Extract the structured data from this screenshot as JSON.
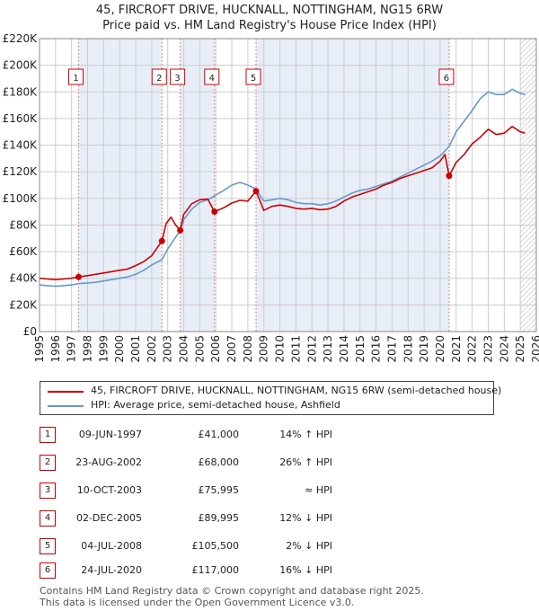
{
  "title_line1": "45, FIRCROFT DRIVE, HUCKNALL, NOTTINGHAM, NG15 6RW",
  "title_line2": "Price paid vs. HM Land Registry's House Price Index (HPI)",
  "legend": {
    "red_label": "45, FIRCROFT DRIVE, HUCKNALL, NOTTINGHAM, NG15 6RW (semi-detached house)",
    "blue_label": "HPI: Average price, semi-detached house, Ashfield"
  },
  "sales": [
    {
      "num": "1",
      "date": "09-JUN-1997",
      "price": "£41,000",
      "hpi": "14% ↑ HPI"
    },
    {
      "num": "2",
      "date": "23-AUG-2002",
      "price": "£68,000",
      "hpi": "26% ↑ HPI"
    },
    {
      "num": "3",
      "date": "10-OCT-2003",
      "price": "£75,995",
      "hpi": "≈ HPI"
    },
    {
      "num": "4",
      "date": "02-DEC-2005",
      "price": "£89,995",
      "hpi": "12% ↓ HPI"
    },
    {
      "num": "5",
      "date": "04-JUL-2008",
      "price": "£105,500",
      "hpi": "2% ↓ HPI"
    },
    {
      "num": "6",
      "date": "24-JUL-2020",
      "price": "£117,000",
      "hpi": "16% ↓ HPI"
    }
  ],
  "footer_line1": "Contains HM Land Registry data © Crown copyright and database right 2025.",
  "footer_line2": "This data is licensed under the Open Government Licence v3.0.",
  "chart_data": {
    "type": "line",
    "xlim": [
      1995,
      2026
    ],
    "ylim": [
      0,
      220000
    ],
    "x_ticks": [
      1995,
      1996,
      1997,
      1998,
      1999,
      2000,
      2001,
      2002,
      2003,
      2004,
      2005,
      2006,
      2007,
      2008,
      2009,
      2010,
      2011,
      2012,
      2013,
      2014,
      2015,
      2016,
      2017,
      2018,
      2019,
      2020,
      2021,
      2022,
      2023,
      2024,
      2025,
      2026
    ],
    "y_ticks": [
      {
        "value": 0,
        "label": "£0"
      },
      {
        "value": 20000,
        "label": "£20K"
      },
      {
        "value": 40000,
        "label": "£40K"
      },
      {
        "value": 60000,
        "label": "£60K"
      },
      {
        "value": 80000,
        "label": "£80K"
      },
      {
        "value": 100000,
        "label": "£100K"
      },
      {
        "value": 120000,
        "label": "£120K"
      },
      {
        "value": 140000,
        "label": "£140K"
      },
      {
        "value": 160000,
        "label": "£160K"
      },
      {
        "value": 180000,
        "label": "£180K"
      },
      {
        "value": 200000,
        "label": "£200K"
      },
      {
        "value": 220000,
        "label": "£220K"
      }
    ],
    "colors": {
      "red": "#cc0000",
      "blue": "#6699cc",
      "shade": "#e8eef8",
      "grid": "#cccccc",
      "marker_dash": "#e06666"
    },
    "shaded_periods": [
      [
        1997.44,
        2002.64
      ],
      [
        2003.78,
        2005.92
      ],
      [
        2008.51,
        2020.56
      ]
    ],
    "future_hatch_from": 2025.0,
    "sale_points": [
      {
        "label": "1",
        "x": 1997.44,
        "y": 41000
      },
      {
        "label": "2",
        "x": 2002.64,
        "y": 68000
      },
      {
        "label": "3",
        "x": 2003.78,
        "y": 75995
      },
      {
        "label": "4",
        "x": 2005.92,
        "y": 89995
      },
      {
        "label": "5",
        "x": 2008.51,
        "y": 105500
      },
      {
        "label": "6",
        "x": 2020.56,
        "y": 117000
      }
    ],
    "series": [
      {
        "name": "HPI: Average price, semi-detached house, Ashfield",
        "color": "#6699cc",
        "x": [
          1995,
          1995.5,
          1996,
          1996.5,
          1997,
          1997.44,
          1998,
          1998.5,
          1999,
          1999.5,
          2000,
          2000.5,
          2001,
          2001.5,
          2002,
          2002.64,
          2003,
          2003.78,
          2004,
          2004.5,
          2005,
          2005.5,
          2005.92,
          2006.5,
          2007,
          2007.5,
          2008,
          2008.51,
          2009,
          2009.5,
          2010,
          2010.5,
          2011,
          2011.5,
          2012,
          2012.5,
          2013,
          2013.5,
          2014,
          2014.5,
          2015,
          2015.5,
          2016,
          2016.5,
          2017,
          2017.5,
          2018,
          2018.5,
          2019,
          2019.5,
          2020,
          2020.56,
          2021,
          2021.5,
          2022,
          2022.5,
          2023,
          2023.5,
          2024,
          2024.5,
          2025,
          2025.3
        ],
        "y": [
          35000,
          34500,
          34000,
          34500,
          35000,
          36000,
          36500,
          37000,
          38000,
          39000,
          40000,
          41000,
          43000,
          46000,
          50000,
          54000,
          62000,
          76000,
          84000,
          92000,
          97000,
          99000,
          102000,
          106000,
          110000,
          112000,
          110000,
          107000,
          98000,
          99000,
          100000,
          99000,
          97000,
          96000,
          96000,
          95000,
          96000,
          98000,
          101000,
          104000,
          106000,
          107000,
          109000,
          111000,
          113000,
          116000,
          119000,
          122000,
          125000,
          128000,
          132000,
          139000,
          150000,
          158000,
          166000,
          175000,
          180000,
          178000,
          178000,
          182000,
          179000,
          178000
        ]
      },
      {
        "name": "45, FIRCROFT DRIVE, HUCKNALL, NOTTINGHAM, NG15 6RW (semi-detached house)",
        "color": "#cc0000",
        "x": [
          1995,
          1995.5,
          1996,
          1996.5,
          1997,
          1997.44,
          1998,
          1998.5,
          1999,
          1999.5,
          2000,
          2000.5,
          2001,
          2001.5,
          2002,
          2002.64,
          2002.9,
          2003.2,
          2003.5,
          2003.78,
          2004,
          2004.5,
          2005,
          2005.5,
          2005.92,
          2006.5,
          2007,
          2007.5,
          2008,
          2008.51,
          2009,
          2009.5,
          2010,
          2010.5,
          2011,
          2011.5,
          2012,
          2012.5,
          2013,
          2013.5,
          2014,
          2014.5,
          2015,
          2015.5,
          2016,
          2016.5,
          2017,
          2017.5,
          2018,
          2018.5,
          2019,
          2019.5,
          2020,
          2020.3,
          2020.56,
          2021,
          2021.5,
          2022,
          2022.5,
          2023,
          2023.5,
          2024,
          2024.5,
          2025,
          2025.3
        ],
        "y": [
          40000,
          39500,
          39000,
          39500,
          40000,
          41000,
          42000,
          43000,
          44000,
          45000,
          46000,
          47000,
          49500,
          52500,
          57000,
          68000,
          81000,
          86000,
          80000,
          75995,
          88000,
          96000,
          99000,
          99500,
          89995,
          93000,
          96500,
          98500,
          98000,
          105500,
          91000,
          94000,
          95000,
          94000,
          92500,
          92000,
          92500,
          91500,
          92000,
          94000,
          98000,
          101000,
          103000,
          105000,
          107000,
          110000,
          112000,
          115000,
          117000,
          119000,
          121000,
          123000,
          128000,
          133000,
          117000,
          127000,
          133000,
          141000,
          146000,
          152000,
          148000,
          149000,
          154000,
          150000,
          149000
        ]
      }
    ]
  }
}
